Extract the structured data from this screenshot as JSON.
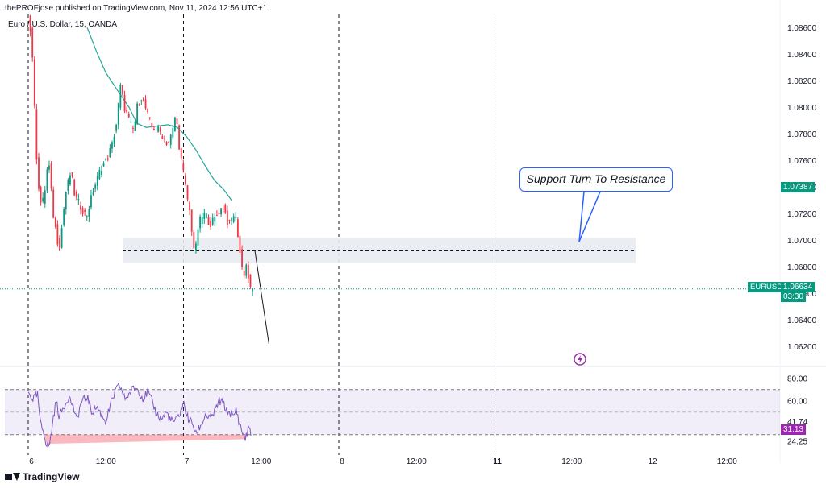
{
  "header": {
    "caption": "thePROFjose published on TradingView.com, Nov 11, 2024 12:56 UTC+1",
    "symbol_line": "Euro / U.S. Dollar, 15, OANDA"
  },
  "annotation": {
    "text": "Support Turn To Resistance"
  },
  "badges": {
    "ema_value": "1.07387",
    "symbol": "EURUSD",
    "last_price": "1.06634",
    "countdown": "03:30",
    "rsi_value": "31.13",
    "ema_color": "#089981",
    "price_color": "#089981",
    "rsi_color": "#9c27b0"
  },
  "footer": {
    "brand": "TradingView"
  },
  "chart_data": [
    {
      "type": "candlestick",
      "title": "Euro / U.S. Dollar, 15, OANDA",
      "ylim": [
        1.0605,
        1.087
      ],
      "y_ticks": [
        "1.08600",
        "1.08400",
        "1.08200",
        "1.08000",
        "1.07800",
        "1.07600",
        "1.07400",
        "1.07200",
        "1.07000",
        "1.06800",
        "1.06600",
        "1.06400",
        "1.06200"
      ],
      "y_tick_values": [
        1.086,
        1.084,
        1.082,
        1.08,
        1.078,
        1.076,
        1.074,
        1.072,
        1.07,
        1.068,
        1.066,
        1.064,
        1.062
      ],
      "x_ticks": [
        "6",
        "12:00",
        "7",
        "12:00",
        "8",
        "12:00",
        "11",
        "12:00",
        "12",
        "12:00"
      ],
      "x_tick_bold": [
        false,
        false,
        false,
        false,
        false,
        false,
        true,
        false,
        false,
        false
      ],
      "price_path": [
        [
          0.0,
          1.0872
        ],
        [
          0.025,
          1.0845
        ],
        [
          0.05,
          1.077
        ],
        [
          0.075,
          1.0728
        ],
        [
          0.1,
          1.073
        ],
        [
          0.13,
          1.0762
        ],
        [
          0.16,
          1.072
        ],
        [
          0.2,
          1.0692
        ],
        [
          0.24,
          1.0735
        ],
        [
          0.275,
          1.0752
        ],
        [
          0.3,
          1.0733
        ],
        [
          0.345,
          1.0724
        ],
        [
          0.375,
          1.0718
        ],
        [
          0.42,
          1.0738
        ],
        [
          0.47,
          1.0755
        ],
        [
          0.505,
          1.076
        ],
        [
          0.54,
          1.0772
        ],
        [
          0.575,
          1.0792
        ],
        [
          0.59,
          1.0818
        ],
        [
          0.62,
          1.08
        ],
        [
          0.65,
          1.079
        ],
        [
          0.68,
          1.0782
        ],
        [
          0.7,
          1.08
        ],
        [
          0.73,
          1.0808
        ],
        [
          0.76,
          1.0798
        ],
        [
          0.78,
          1.079
        ],
        [
          0.8,
          1.0785
        ],
        [
          0.83,
          1.0784
        ],
        [
          0.86,
          1.078
        ],
        [
          0.88,
          1.0776
        ],
        [
          0.9,
          1.0772
        ],
        [
          0.93,
          1.0782
        ],
        [
          0.95,
          1.0796
        ],
        [
          0.975,
          1.0768
        ],
        [
          1.0,
          1.075
        ],
        [
          1.02,
          1.0735
        ],
        [
          1.045,
          1.0718
        ],
        [
          1.06,
          1.07
        ],
        [
          1.075,
          1.0688
        ],
        [
          1.09,
          1.0708
        ],
        [
          1.11,
          1.0716
        ],
        [
          1.14,
          1.072
        ],
        [
          1.17,
          1.0712
        ],
        [
          1.2,
          1.0716
        ],
        [
          1.23,
          1.0722
        ],
        [
          1.26,
          1.0726
        ],
        [
          1.28,
          1.0714
        ],
        [
          1.3,
          1.0712
        ],
        [
          1.32,
          1.072
        ],
        [
          1.34,
          1.0715
        ],
        [
          1.36,
          1.0694
        ],
        [
          1.375,
          1.068
        ],
        [
          1.39,
          1.0675
        ],
        [
          1.405,
          1.0682
        ],
        [
          1.42,
          1.067
        ],
        [
          1.435,
          1.066
        ],
        [
          1.445,
          1.0663
        ]
      ],
      "ema_path": [
        [
          0.38,
          1.086
        ],
        [
          0.44,
          1.0842
        ],
        [
          0.5,
          1.0826
        ],
        [
          0.58,
          1.0812
        ],
        [
          0.65,
          1.08
        ],
        [
          0.7,
          1.0788
        ],
        [
          0.76,
          1.0785
        ],
        [
          0.83,
          1.0786
        ],
        [
          0.9,
          1.0787
        ],
        [
          0.96,
          1.0785
        ],
        [
          1.02,
          1.0778
        ],
        [
          1.08,
          1.0768
        ],
        [
          1.14,
          1.0756
        ],
        [
          1.2,
          1.0745
        ],
        [
          1.26,
          1.0738
        ],
        [
          1.31,
          1.073
        ]
      ],
      "support_zone": {
        "low": 1.0683,
        "high": 1.0702
      },
      "support_level": 1.0692,
      "last_price": 1.06634,
      "projection": [
        [
          1.46,
          1.0692
        ],
        [
          1.55,
          1.0622
        ]
      ]
    },
    {
      "type": "line",
      "title": "RSI",
      "ylim": [
        17,
        87
      ],
      "y_ticks": [
        "80.00",
        "60.00",
        "41.74",
        "24.25"
      ],
      "y_tick_values": [
        80,
        60,
        41.74,
        24.25
      ],
      "bands": {
        "upper": 70,
        "middle": 50,
        "lower": 30
      },
      "last_value": 31.13,
      "rsi_path": [
        [
          0.0,
          67
        ],
        [
          0.03,
          62
        ],
        [
          0.06,
          65
        ],
        [
          0.08,
          38
        ],
        [
          0.1,
          33
        ],
        [
          0.12,
          20
        ],
        [
          0.14,
          22
        ],
        [
          0.16,
          44
        ],
        [
          0.18,
          60
        ],
        [
          0.2,
          46
        ],
        [
          0.23,
          55
        ],
        [
          0.26,
          64
        ],
        [
          0.29,
          55
        ],
        [
          0.31,
          42
        ],
        [
          0.34,
          58
        ],
        [
          0.38,
          64
        ],
        [
          0.41,
          50
        ],
        [
          0.44,
          55
        ],
        [
          0.47,
          48
        ],
        [
          0.5,
          42
        ],
        [
          0.53,
          56
        ],
        [
          0.56,
          68
        ],
        [
          0.59,
          74
        ],
        [
          0.62,
          62
        ],
        [
          0.65,
          66
        ],
        [
          0.68,
          72
        ],
        [
          0.71,
          70
        ],
        [
          0.74,
          62
        ],
        [
          0.77,
          68
        ],
        [
          0.8,
          58
        ],
        [
          0.83,
          48
        ],
        [
          0.86,
          44
        ],
        [
          0.89,
          50
        ],
        [
          0.92,
          42
        ],
        [
          0.95,
          42
        ],
        [
          0.98,
          50
        ],
        [
          1.0,
          58
        ],
        [
          1.03,
          44
        ],
        [
          1.06,
          40
        ],
        [
          1.08,
          30
        ],
        [
          1.1,
          36
        ],
        [
          1.12,
          40
        ],
        [
          1.14,
          48
        ],
        [
          1.17,
          44
        ],
        [
          1.2,
          50
        ],
        [
          1.23,
          60
        ],
        [
          1.26,
          57
        ],
        [
          1.28,
          50
        ],
        [
          1.3,
          50
        ],
        [
          1.32,
          45
        ],
        [
          1.34,
          53
        ],
        [
          1.36,
          40
        ],
        [
          1.38,
          32
        ],
        [
          1.4,
          26
        ],
        [
          1.42,
          37
        ],
        [
          1.44,
          31
        ]
      ]
    }
  ]
}
